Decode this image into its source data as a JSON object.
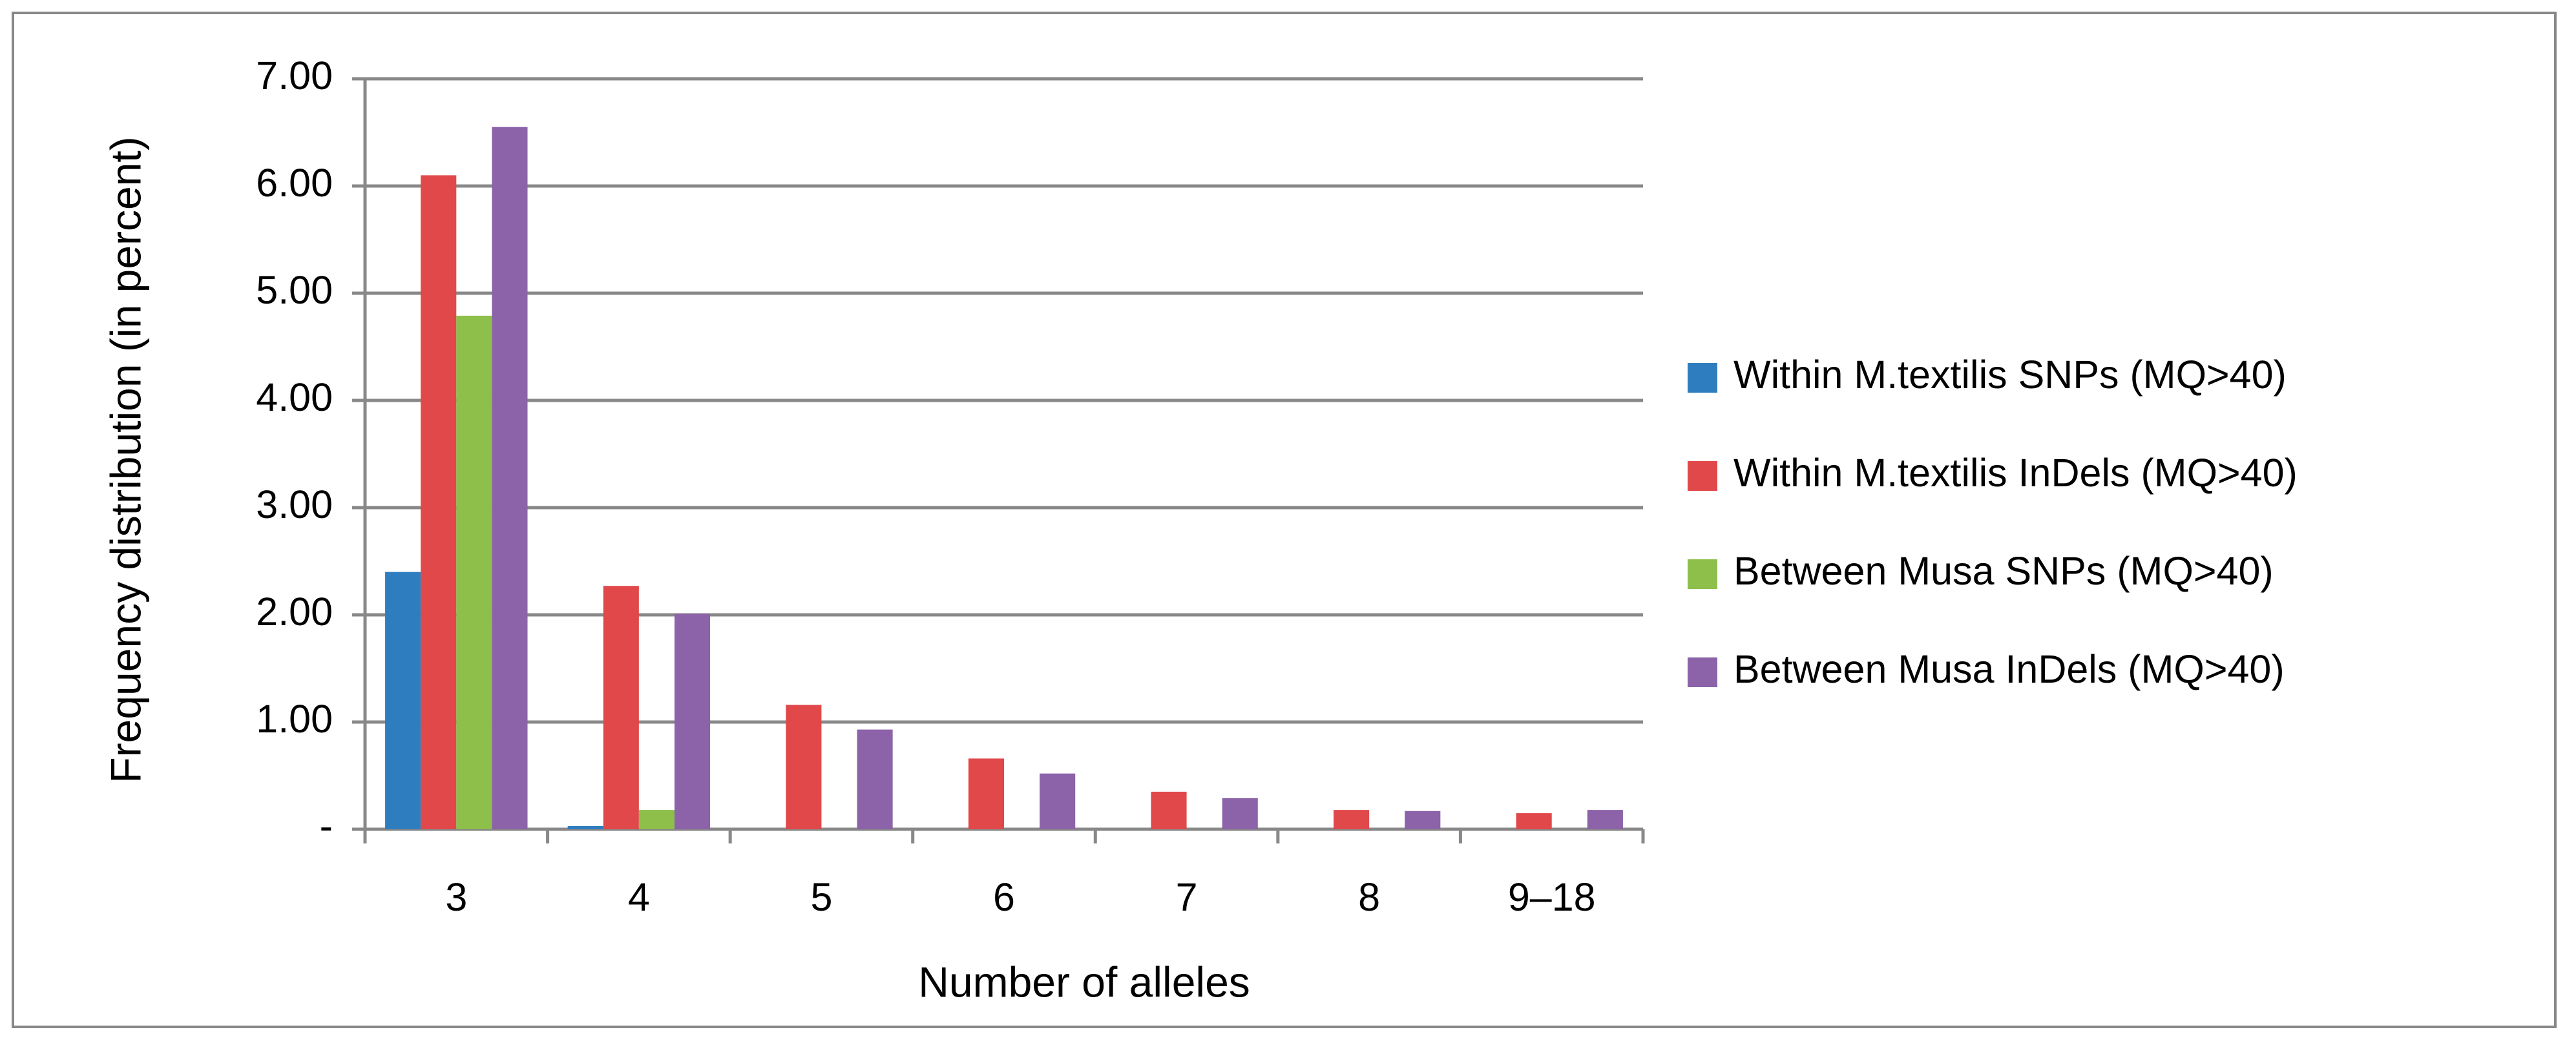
{
  "chart_data": {
    "type": "bar",
    "xlabel": "Number of alleles",
    "ylabel": "Frequency distribution (in percent)",
    "categories": [
      "3",
      "4",
      "5",
      "6",
      "7",
      "8",
      "9–18"
    ],
    "series": [
      {
        "name": "Within M.textilis SNPs (MQ>40)",
        "color": "#2e7ebf",
        "values": [
          2.4,
          0.03,
          0,
          0,
          0,
          0,
          0
        ]
      },
      {
        "name": "Within M.textilis InDels (MQ>40)",
        "color": "#e0484a",
        "values": [
          6.1,
          2.27,
          1.16,
          0.66,
          0.35,
          0.18,
          0.15
        ]
      },
      {
        "name": "Between Musa SNPs (MQ>40)",
        "color": "#8dbf4a",
        "values": [
          4.79,
          0.18,
          0,
          0,
          0,
          0,
          0
        ]
      },
      {
        "name": "Between Musa InDels (MQ>40)",
        "color": "#8c62a8",
        "values": [
          6.55,
          2.01,
          0.93,
          0.52,
          0.29,
          0.17,
          0.18
        ]
      }
    ],
    "ylim": [
      0,
      7
    ],
    "yticks": [
      {
        "value": 0,
        "label": "-"
      },
      {
        "value": 1,
        "label": "1.00"
      },
      {
        "value": 2,
        "label": "2.00"
      },
      {
        "value": 3,
        "label": "3.00"
      },
      {
        "value": 4,
        "label": "4.00"
      },
      {
        "value": 5,
        "label": "5.00"
      },
      {
        "value": 6,
        "label": "6.00"
      },
      {
        "value": 7,
        "label": "7.00"
      }
    ],
    "grid": true,
    "legend": "right"
  }
}
